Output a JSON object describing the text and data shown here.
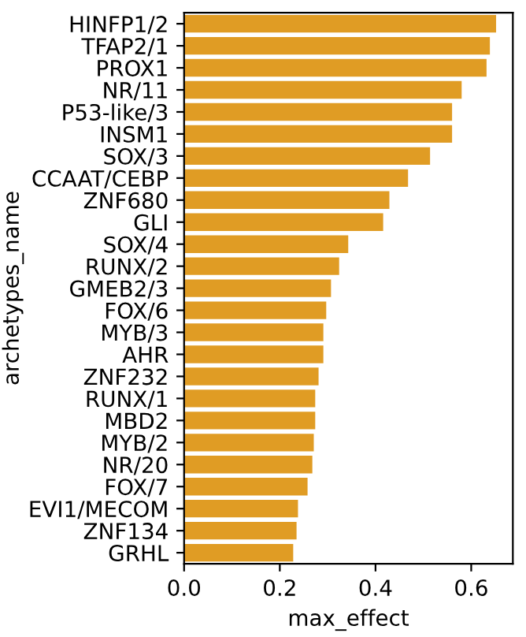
{
  "chart_data": {
    "type": "bar",
    "orientation": "horizontal",
    "xlabel": "max_effect",
    "ylabel": "archetypes_name",
    "categories": [
      "HINFP1/2",
      "TFAP2/1",
      "PROX1",
      "NR/11",
      "P53-like/3",
      "INSM1",
      "SOX/3",
      "CCAAT/CEBP",
      "ZNF680",
      "GLI",
      "SOX/4",
      "RUNX/2",
      "GMEB2/3",
      "FOX/6",
      "MYB/3",
      "AHR",
      "ZNF232",
      "RUNX/1",
      "MBD2",
      "MYB/2",
      "NR/20",
      "FOX/7",
      "EVI1/MECOM",
      "ZNF134",
      "GRHL"
    ],
    "values": [
      0.652,
      0.639,
      0.632,
      0.58,
      0.56,
      0.56,
      0.514,
      0.468,
      0.429,
      0.416,
      0.343,
      0.324,
      0.307,
      0.297,
      0.291,
      0.291,
      0.281,
      0.274,
      0.274,
      0.271,
      0.268,
      0.258,
      0.238,
      0.235,
      0.228
    ],
    "color": "#e09c24",
    "xlim": [
      0,
      0.687
    ],
    "xticks": [
      {
        "value": 0,
        "label": "0.0"
      },
      0.2,
      0.4,
      0.6
    ],
    "grid": false
  }
}
